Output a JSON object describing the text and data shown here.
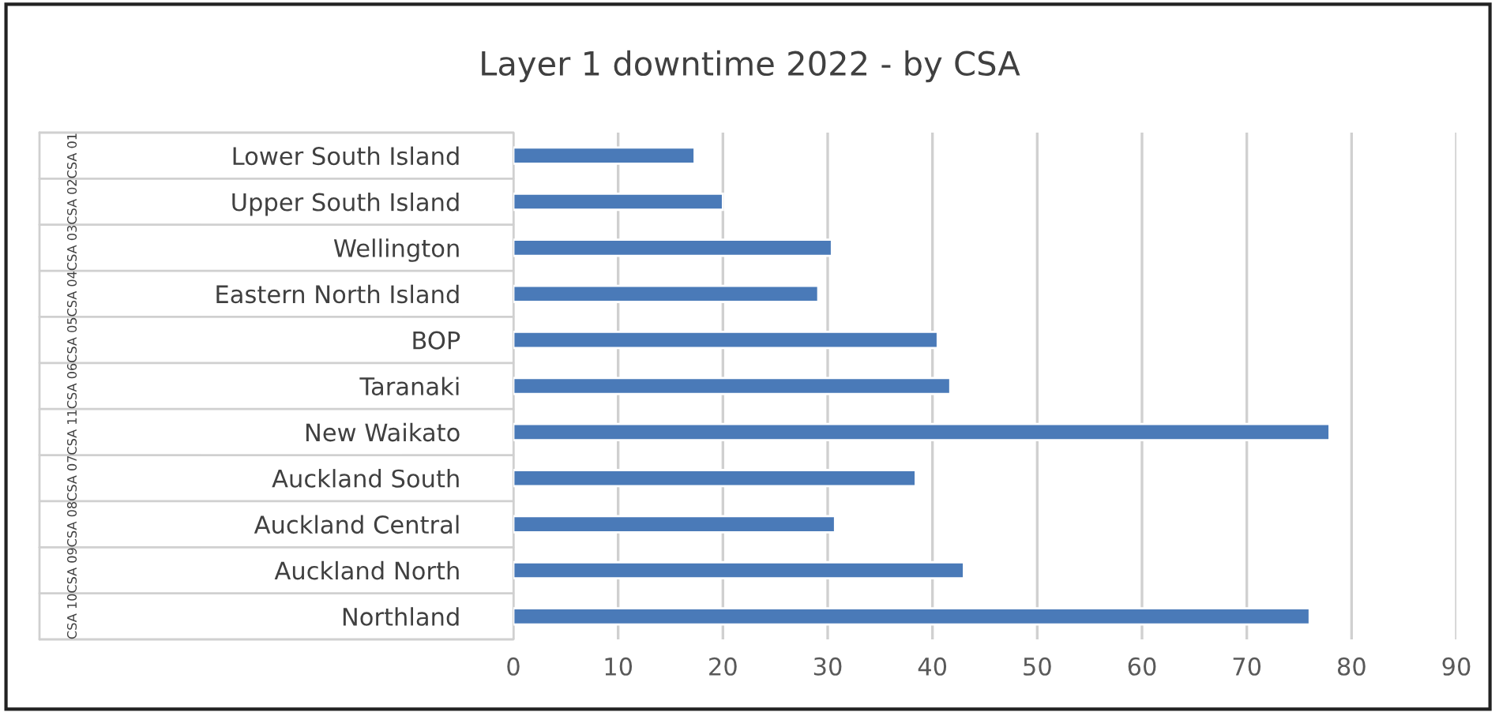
{
  "chart_data": {
    "type": "bar",
    "orientation": "horizontal",
    "title": "Layer 1 downtime 2022 - by CSA",
    "categories": [
      "Lower South Island",
      "Upper South Island",
      "Wellington",
      "Eastern North Island",
      "BOP",
      "Taranaki",
      "New Waikato",
      "Auckland South",
      "Auckland Central",
      "Auckland North",
      "Northland"
    ],
    "series": [
      {
        "color": "#4a7ab8",
        "values": [
          17.3,
          20.0,
          30.4,
          29.1,
          40.5,
          41.7,
          77.9,
          38.4,
          30.7,
          43.0,
          76.0
        ]
      }
    ],
    "annotations": [
      "CSA 01",
      "CSA 02",
      "CSA 03",
      "CSA 04",
      "CSA 05",
      "CSA 06",
      "CSA 11",
      "CSA 07",
      "CSA 08",
      "CSA 09",
      "CSA 10"
    ],
    "xlim": [
      0,
      90
    ],
    "xticks": [
      0,
      10,
      20,
      30,
      40,
      50,
      60,
      70,
      80,
      90
    ],
    "grid": "x",
    "legend": false
  }
}
